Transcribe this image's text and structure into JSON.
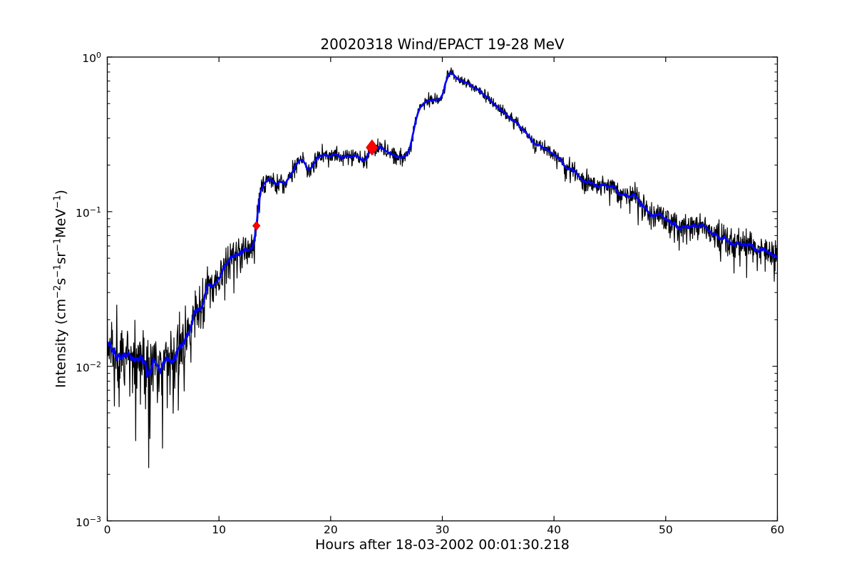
{
  "figure": {
    "background_color": "#ffffff",
    "frame_color": "#000000"
  },
  "chart_data": {
    "type": "line",
    "title": "20020318 Wind/EPACT 19-28 MeV",
    "xlabel": "Hours after 18-03-2002 00:01:30.218",
    "ylabel_parts": [
      {
        "t": "Intensity (cm",
        "e": "−2"
      },
      {
        "t": "s",
        "e": "−1"
      },
      {
        "t": "sr",
        "e": "−1"
      },
      {
        "t": "MeV",
        "e": "−1"
      },
      {
        "t": ")",
        "e": ""
      }
    ],
    "xlim": [
      0,
      60
    ],
    "ylim": [
      0.001,
      1
    ],
    "ylog": true,
    "grid": false,
    "legend": null,
    "xticks": {
      "values": [
        0,
        10,
        20,
        30,
        40,
        50,
        60
      ],
      "labels": [
        "0",
        "10",
        "20",
        "30",
        "40",
        "50",
        "60"
      ]
    },
    "yticks": [
      {
        "value": 1,
        "base": "10",
        "exp": "0"
      },
      {
        "value": 0.1,
        "base": "10",
        "exp": "−1"
      },
      {
        "value": 0.01,
        "base": "10",
        "exp": "−2"
      },
      {
        "value": 0.001,
        "base": "10",
        "exp": "−3"
      }
    ],
    "series": [
      {
        "name": "raw-intensity",
        "color": "#000000",
        "line_width": 1.2,
        "style": "noisy"
      },
      {
        "name": "smoothed-intensity",
        "color": "#0000ff",
        "line_width": 2.6,
        "style": "smooth"
      }
    ],
    "smooth_curve": {
      "hours": [
        0,
        0.4,
        0.8,
        1.2,
        1.6,
        2.0,
        2.5,
        3.0,
        3.5,
        4.0,
        4.5,
        5.0,
        5.4,
        5.8,
        6.2,
        6.6,
        7.0,
        7.5,
        8.0,
        8.4,
        8.8,
        9.1,
        9.4,
        9.7,
        10.0,
        10.4,
        10.8,
        11.2,
        11.6,
        12.0,
        12.4,
        12.7,
        13.0,
        13.2,
        13.35,
        13.5,
        13.7,
        14.0,
        14.4,
        14.8,
        15.2,
        15.6,
        16.0,
        16.4,
        16.8,
        17.1,
        17.4,
        17.7,
        18.0,
        18.4,
        18.8,
        19.2,
        19.6,
        20.0,
        20.5,
        21.0,
        21.4,
        22.0,
        22.5,
        22.9,
        23.2,
        23.5,
        23.7,
        24.0,
        24.4,
        24.8,
        25.2,
        25.6,
        26.0,
        26.4,
        26.8,
        27.1,
        27.4,
        27.7,
        28.0,
        28.4,
        28.8,
        29.2,
        29.6,
        30.0,
        30.2,
        30.45,
        30.7,
        31.0,
        31.4,
        31.8,
        32.2,
        32.6,
        33.0,
        33.5,
        34.0,
        34.5,
        35.0,
        35.5,
        36.0,
        36.5,
        37.0,
        37.5,
        38.0,
        38.5,
        39.0,
        39.5,
        40.0,
        40.5,
        41.0,
        41.5,
        42.0,
        42.5,
        43.0,
        43.5,
        44.0,
        44.5,
        45.0,
        45.5,
        46.0,
        46.5,
        47.0,
        47.5,
        48.0,
        48.5,
        49.0,
        49.5,
        50.0,
        50.5,
        51.0,
        51.5,
        52.0,
        52.5,
        53.0,
        53.5,
        54.0,
        54.5,
        55.0,
        55.5,
        56.0,
        56.5,
        57.0,
        57.5,
        58.0,
        58.5,
        59.0,
        59.5,
        60.0
      ],
      "intensity": [
        0.014,
        0.0132,
        0.0128,
        0.0122,
        0.0119,
        0.0117,
        0.0114,
        0.011,
        0.0103,
        0.0097,
        0.0094,
        0.0099,
        0.0104,
        0.0108,
        0.0118,
        0.0132,
        0.0158,
        0.019,
        0.022,
        0.0245,
        0.029,
        0.031,
        0.0298,
        0.036,
        0.04,
        0.0455,
        0.047,
        0.0515,
        0.055,
        0.054,
        0.0575,
        0.055,
        0.058,
        0.062,
        0.081,
        0.105,
        0.13,
        0.15,
        0.16,
        0.157,
        0.152,
        0.154,
        0.156,
        0.168,
        0.2,
        0.215,
        0.22,
        0.198,
        0.187,
        0.2,
        0.222,
        0.232,
        0.235,
        0.23,
        0.24,
        0.215,
        0.235,
        0.23,
        0.235,
        0.21,
        0.225,
        0.25,
        0.26,
        0.25,
        0.26,
        0.245,
        0.238,
        0.225,
        0.23,
        0.22,
        0.23,
        0.25,
        0.33,
        0.42,
        0.46,
        0.5,
        0.53,
        0.51,
        0.53,
        0.56,
        0.63,
        0.76,
        0.8,
        0.77,
        0.72,
        0.69,
        0.69,
        0.65,
        0.63,
        0.6,
        0.55,
        0.5,
        0.46,
        0.44,
        0.41,
        0.38,
        0.35,
        0.32,
        0.29,
        0.27,
        0.255,
        0.25,
        0.235,
        0.215,
        0.195,
        0.185,
        0.175,
        0.162,
        0.158,
        0.152,
        0.148,
        0.144,
        0.15,
        0.14,
        0.134,
        0.128,
        0.125,
        0.115,
        0.108,
        0.1,
        0.095,
        0.09,
        0.088,
        0.085,
        0.082,
        0.08,
        0.082,
        0.079,
        0.078,
        0.08,
        0.076,
        0.072,
        0.068,
        0.069,
        0.065,
        0.062,
        0.06,
        0.062,
        0.058,
        0.055,
        0.056,
        0.053,
        0.052
      ]
    },
    "noise": {
      "seed": 20020318,
      "rel_sigma_coeff": 0.031,
      "min_factor": 0.22,
      "points": 1700,
      "smooth_window": 15
    },
    "markers": [
      {
        "shape": "diamond",
        "color": "#ff0000",
        "edge_color": "#dd0000",
        "hours": 13.35,
        "intensity": 0.081,
        "size": "small"
      },
      {
        "shape": "diamond",
        "color": "#ff0000",
        "edge_color": "#dd0000",
        "hours": 23.7,
        "intensity": 0.26,
        "size": "large"
      }
    ]
  }
}
